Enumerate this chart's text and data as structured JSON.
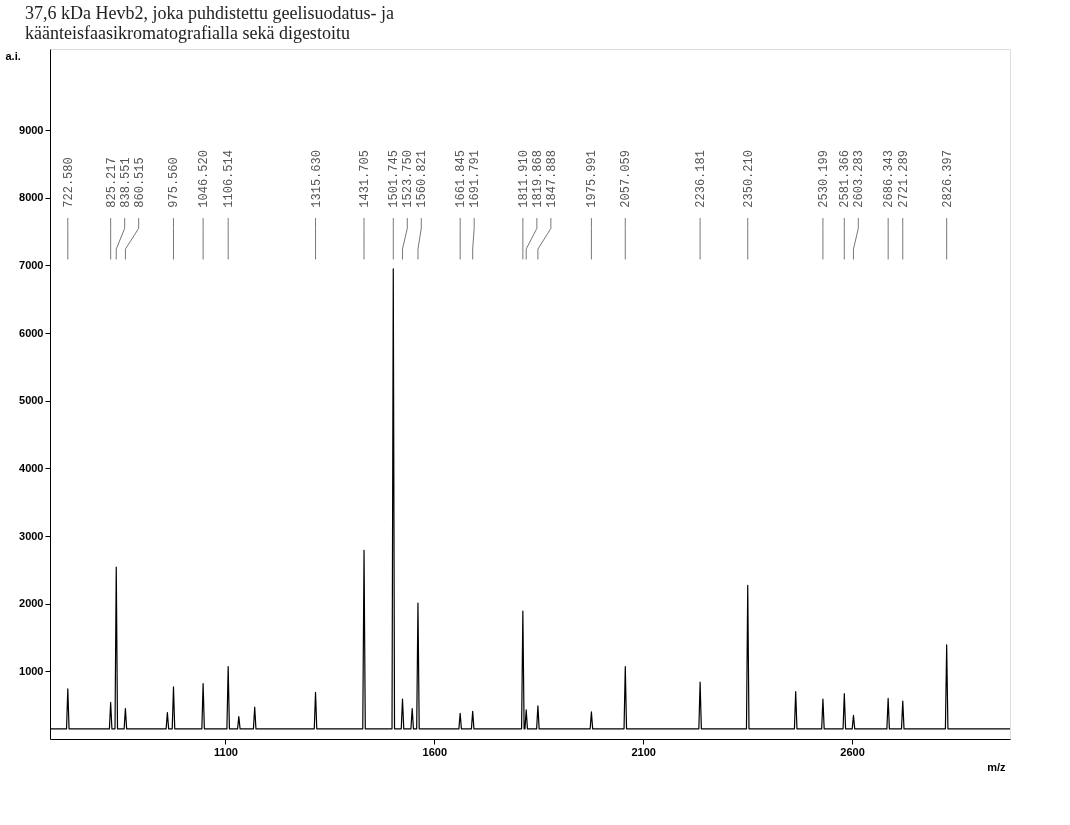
{
  "chart_data": {
    "type": "line",
    "title": [
      "37,6 kDa Hevb2, joka puhdistettu geelisuodatus- ja",
      "käänteisfaasikromatografialla sekä digestoitu"
    ],
    "xlabel": "m/z",
    "ylabel": "a.i.",
    "xlim": [
      680,
      2978
    ],
    "xticks": [
      1100,
      1600,
      2100,
      2600
    ],
    "ylim": [
      0,
      10200
    ],
    "yticks": [
      1000,
      2000,
      3000,
      4000,
      5000,
      6000,
      7000,
      8000,
      9000
    ],
    "grid": false,
    "marker": "none",
    "line_style": "solid",
    "series": [
      {
        "color": "#000000",
        "x": [
          680,
          719.6,
          722.6,
          725.6,
          822.2,
          825.2,
          828.2,
          835.6,
          838.6,
          841.6,
          857.5,
          860.5,
          863.5,
          958,
          961,
          964,
          972.6,
          975.6,
          978.6,
          1043.5,
          1046.5,
          1049.5,
          1103.5,
          1106.5,
          1109.5,
          1129,
          1132,
          1135,
          1167,
          1170,
          1173,
          1312.6,
          1315.6,
          1318.6,
          1428.7,
          1431.7,
          1434.7,
          1498.7,
          1501.7,
          1504.7,
          1520.8,
          1523.8,
          1526.8,
          1544,
          1547,
          1550,
          1557.8,
          1560.8,
          1563.8,
          1658.8,
          1661.8,
          1664.8,
          1688.8,
          1691.8,
          1694.8,
          1808.9,
          1811.9,
          1814.9,
          1816.9,
          1819.9,
          1822.9,
          1844.9,
          1847.9,
          1850.9,
          1973,
          1976,
          1979,
          2054.1,
          2057.1,
          2060.1,
          2233.2,
          2236.2,
          2239.2,
          2347.2,
          2350.2,
          2353.2,
          2462,
          2465,
          2468,
          2527.2,
          2530.2,
          2533.2,
          2578.4,
          2581.4,
          2584.4,
          2600.3,
          2603.3,
          2606.3,
          2683.3,
          2686.3,
          2689.3,
          2718.3,
          2721.3,
          2724.3,
          2823.4,
          2826.4,
          2829.4,
          2978
        ],
        "values": [
          150,
          150,
          740,
          150,
          150,
          540,
          150,
          150,
          2540,
          150,
          150,
          450,
          150,
          150,
          390,
          150,
          150,
          770,
          150,
          150,
          820,
          150,
          150,
          1070,
          150,
          150,
          330,
          150,
          150,
          470,
          150,
          150,
          690,
          150,
          150,
          2790,
          150,
          150,
          6950,
          150,
          150,
          590,
          150,
          150,
          450,
          150,
          150,
          2010,
          150,
          150,
          380,
          150,
          150,
          410,
          150,
          150,
          1890,
          150,
          150,
          430,
          150,
          150,
          490,
          150,
          150,
          400,
          150,
          150,
          1070,
          150,
          150,
          840,
          150,
          150,
          2270,
          150,
          150,
          700,
          150,
          150,
          590,
          150,
          150,
          670,
          150,
          150,
          350,
          150,
          150,
          600,
          150,
          150,
          560,
          150,
          150,
          1390,
          150,
          150
        ]
      }
    ],
    "annotations": [
      {
        "text": "722.580",
        "x": 722.58
      },
      {
        "text": "825.217",
        "x": 825.217
      },
      {
        "text": "838.551",
        "x": 838.551
      },
      {
        "text": "860.515",
        "x": 860.515
      },
      {
        "text": "975.560",
        "x": 975.56
      },
      {
        "text": "1046.520",
        "x": 1046.52
      },
      {
        "text": "1106.514",
        "x": 1106.514
      },
      {
        "text": "1315.630",
        "x": 1315.63
      },
      {
        "text": "1431.705",
        "x": 1431.705
      },
      {
        "text": "1501.745",
        "x": 1501.745
      },
      {
        "text": "1523.750",
        "x": 1523.75
      },
      {
        "text": "1560.821",
        "x": 1560.821
      },
      {
        "text": "1661.845",
        "x": 1661.845
      },
      {
        "text": "1691.791",
        "x": 1691.791
      },
      {
        "text": "1811.910",
        "x": 1811.91
      },
      {
        "text": "1819.868",
        "x": 1819.868
      },
      {
        "text": "1847.888",
        "x": 1847.888
      },
      {
        "text": "1975.991",
        "x": 1975.991
      },
      {
        "text": "2057.059",
        "x": 2057.059
      },
      {
        "text": "2236.181",
        "x": 2236.181
      },
      {
        "text": "2350.210",
        "x": 2350.21
      },
      {
        "text": "2530.199",
        "x": 2530.199
      },
      {
        "text": "2581.366",
        "x": 2581.366
      },
      {
        "text": "2603.283",
        "x": 2603.283
      },
      {
        "text": "2686.343",
        "x": 2686.343
      },
      {
        "text": "2721.289",
        "x": 2721.289
      },
      {
        "text": "2826.397",
        "x": 2826.397
      }
    ]
  }
}
